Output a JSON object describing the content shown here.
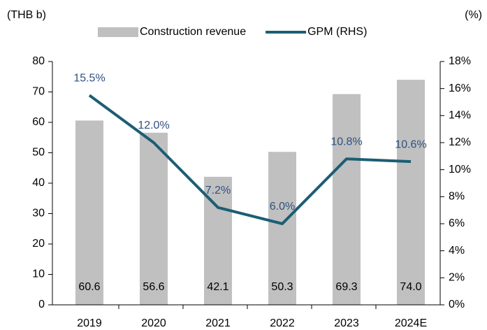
{
  "chart_data": {
    "type": "bar",
    "y_label": "(THB b)",
    "y2_label": "(%)",
    "categories": [
      "2019",
      "2020",
      "2021",
      "2022",
      "2023",
      "2024E"
    ],
    "series": [
      {
        "name": "Construction revenue",
        "color": "#c0c0c0",
        "values": [
          60.6,
          56.6,
          42.1,
          50.3,
          69.3,
          74.0
        ],
        "value_labels": [
          "60.6",
          "56.6",
          "42.1",
          "50.3",
          "69.3",
          "74.0"
        ]
      },
      {
        "name": "GPM (RHS)",
        "type": "line",
        "axis": "y2",
        "color": "#1b5e73",
        "label_color": "#2f5080",
        "values": [
          15.5,
          12.0,
          7.2,
          6.0,
          10.8,
          10.6
        ],
        "value_labels": [
          "15.5%",
          "12.0%",
          "7.2%",
          "6.0%",
          "10.8%",
          "10.6%"
        ]
      }
    ],
    "ylim": [
      0,
      80
    ],
    "yticks": [
      0,
      10,
      20,
      30,
      40,
      50,
      60,
      70,
      80
    ],
    "y2lim": [
      0,
      18
    ],
    "y2ticks": [
      {
        "value": 0,
        "label": "0%"
      },
      {
        "value": 2,
        "label": "2%"
      },
      {
        "value": 4,
        "label": "4%"
      },
      {
        "value": 6,
        "label": "6%"
      },
      {
        "value": 8,
        "label": "8%"
      },
      {
        "value": 10,
        "label": "10%"
      },
      {
        "value": 12,
        "label": "12%"
      },
      {
        "value": 14,
        "label": "14%"
      },
      {
        "value": 16,
        "label": "16%"
      },
      {
        "value": 18,
        "label": "18%"
      }
    ],
    "legend": "top"
  }
}
